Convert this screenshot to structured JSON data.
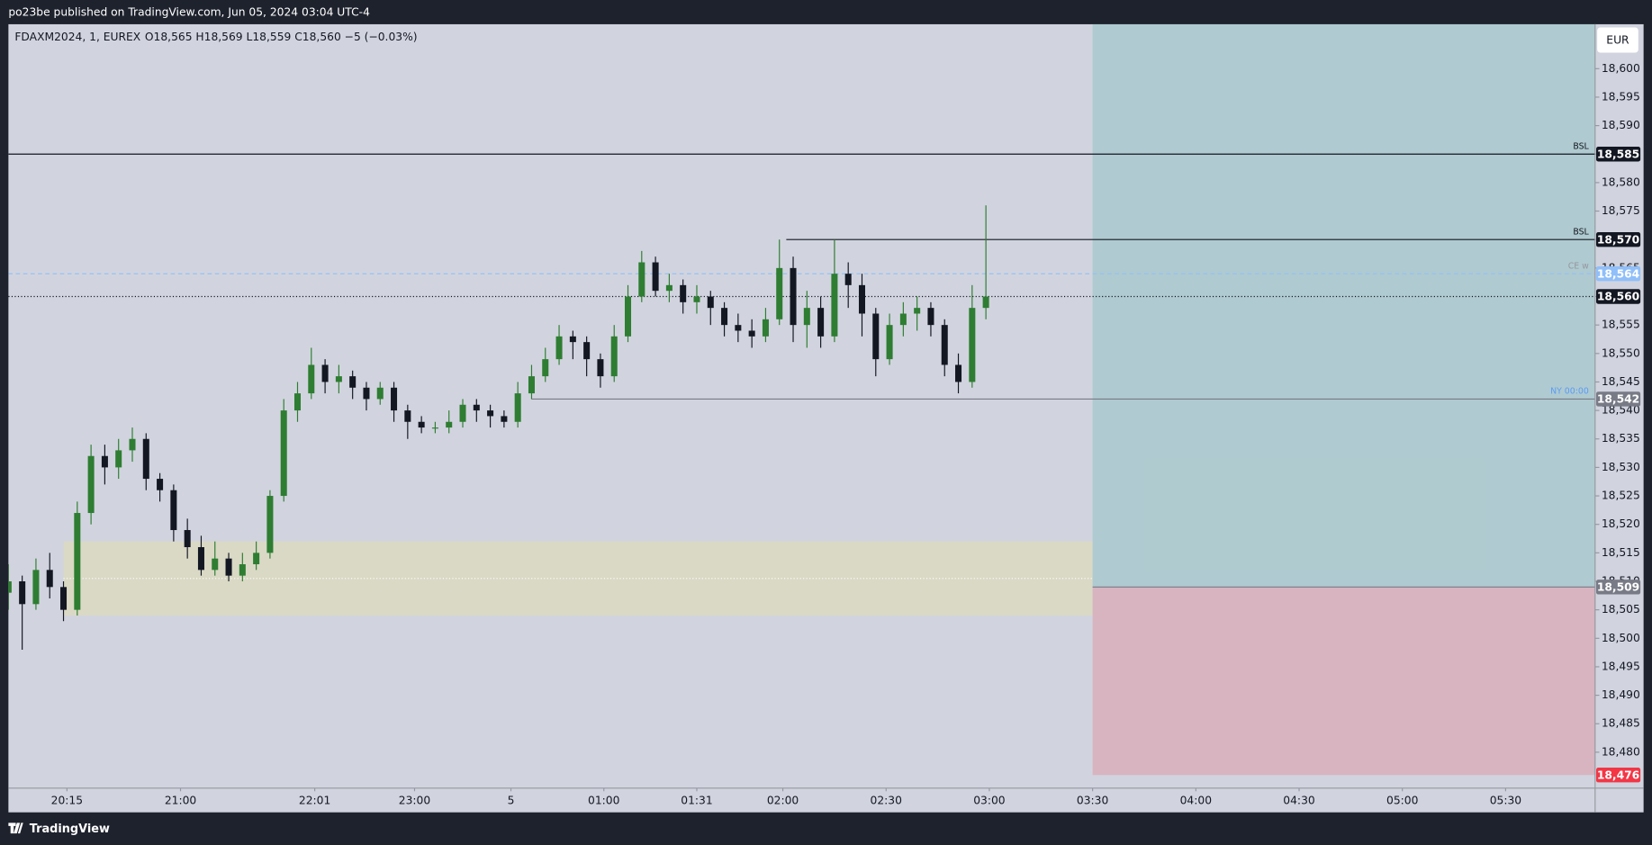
{
  "header": {
    "title": "po23be published on TradingView.com, Jun 05, 2024 03:04 UTC-4"
  },
  "footer": {
    "brand": "TradingView"
  },
  "chart_data": {
    "type": "candlestick",
    "symbol": "FDAXM2024, 1, EUREX",
    "ohlc_legend": "O18,565  H18,569  L18,559  C18,560  −5 (−0.03%)",
    "currency": "EUR",
    "up_color": "#2e7d32",
    "down_color": "#131722",
    "x": [
      0,
      4,
      8,
      12,
      16,
      20,
      24,
      28,
      32,
      36,
      40,
      44,
      48,
      52,
      56,
      60,
      64,
      68,
      72,
      76,
      80,
      84,
      88,
      92,
      96,
      100,
      104,
      108,
      112,
      116,
      120,
      124,
      128,
      132,
      136,
      140,
      144,
      148,
      152,
      156,
      160,
      164,
      168,
      172,
      176,
      180,
      184,
      188,
      192,
      196,
      200,
      204,
      208,
      212,
      216,
      220,
      224,
      228,
      232,
      236,
      240,
      244,
      248,
      252,
      256,
      260,
      264,
      268,
      272,
      276,
      280,
      284
    ],
    "open": [
      18508,
      18510,
      18506,
      18512,
      18509,
      18505,
      18522,
      18532,
      18530,
      18533,
      18535,
      18528,
      18526,
      18519,
      18516,
      18512,
      18514,
      18511,
      18513,
      18515,
      18525,
      18540,
      18543,
      18548,
      18545,
      18546,
      18544,
      18542,
      18544,
      18540,
      18538,
      18537,
      18537,
      18538,
      18541,
      18540,
      18539,
      18538,
      18543,
      18546,
      18549,
      18553,
      18552,
      18549,
      18546,
      18553,
      18560,
      18566,
      18561,
      18562,
      18559,
      18560,
      18558,
      18555,
      18554,
      18553,
      18556,
      18565,
      18555,
      18558,
      18553,
      18564,
      18562,
      18557,
      18549,
      18555,
      18557,
      18558,
      18555,
      18548,
      18545,
      18558
    ],
    "high": [
      18513,
      18511,
      18514,
      18515,
      18510,
      18524,
      18534,
      18534,
      18535,
      18537,
      18536,
      18529,
      18527,
      18521,
      18518,
      18517,
      18515,
      18515,
      18517,
      18526,
      18542,
      18545,
      18551,
      18549,
      18548,
      18547,
      18545,
      18545,
      18545,
      18541,
      18539,
      18538,
      18540,
      18542,
      18542,
      18541,
      18540,
      18545,
      18548,
      18551,
      18555,
      18554,
      18553,
      18550,
      18555,
      18562,
      18568,
      18567,
      18564,
      18563,
      18562,
      18561,
      18559,
      18557,
      18556,
      18558,
      18570,
      18567,
      18561,
      18560,
      18570,
      18566,
      18564,
      18558,
      18557,
      18559,
      18560,
      18559,
      18556,
      18550,
      18562,
      18576
    ],
    "low": [
      18505,
      18498,
      18505,
      18507,
      18503,
      18504,
      18520,
      18527,
      18528,
      18531,
      18526,
      18524,
      18517,
      18514,
      18511,
      18511,
      18510,
      18510,
      18512,
      18514,
      18524,
      18538,
      18542,
      18543,
      18543,
      18542,
      18540,
      18541,
      18538,
      18535,
      18536,
      18536,
      18536,
      18537,
      18538,
      18537,
      18537,
      18537,
      18542,
      18545,
      18548,
      18549,
      18546,
      18544,
      18545,
      18552,
      18559,
      18560,
      18559,
      18557,
      18557,
      18555,
      18553,
      18552,
      18551,
      18552,
      18555,
      18552,
      18551,
      18551,
      18552,
      18558,
      18553,
      18546,
      18548,
      18553,
      18554,
      18553,
      18546,
      18543,
      18544,
      18556
    ],
    "close": [
      18510,
      18506,
      18512,
      18509,
      18505,
      18522,
      18532,
      18530,
      18533,
      18535,
      18528,
      18526,
      18519,
      18516,
      18512,
      18514,
      18511,
      18513,
      18515,
      18525,
      18540,
      18543,
      18548,
      18545,
      18546,
      18544,
      18542,
      18544,
      18540,
      18538,
      18537,
      18537,
      18538,
      18541,
      18540,
      18539,
      18538,
      18543,
      18546,
      18549,
      18553,
      18552,
      18549,
      18546,
      18553,
      18560,
      18566,
      18561,
      18562,
      18559,
      18560,
      18558,
      18555,
      18554,
      18553,
      18556,
      18565,
      18555,
      18558,
      18553,
      18564,
      18562,
      18557,
      18549,
      18555,
      18557,
      18558,
      18555,
      18548,
      18545,
      18558,
      18560
    ],
    "xlim": [
      0,
      461
    ],
    "xticks": [
      {
        "value": 17,
        "label": "20:15"
      },
      {
        "value": 50,
        "label": "21:00"
      },
      {
        "value": 89,
        "label": "22:01"
      },
      {
        "value": 118,
        "label": "23:00"
      },
      {
        "value": 146,
        "label": "5"
      },
      {
        "value": 173,
        "label": "01:00"
      },
      {
        "value": 200,
        "label": "01:31"
      },
      {
        "value": 225,
        "label": "02:00"
      },
      {
        "value": 255,
        "label": "02:30"
      },
      {
        "value": 285,
        "label": "03:00"
      },
      {
        "value": 315,
        "label": "03:30"
      },
      {
        "value": 345,
        "label": "04:00"
      },
      {
        "value": 375,
        "label": "04:30"
      },
      {
        "value": 405,
        "label": "05:00"
      },
      {
        "value": 435,
        "label": "05:30"
      }
    ],
    "ylim": [
      18473.7,
      18607.8
    ],
    "yticks": [
      {
        "value": 18480,
        "label": "18,480"
      },
      {
        "value": 18485,
        "label": "18,485"
      },
      {
        "value": 18490,
        "label": "18,490"
      },
      {
        "value": 18495,
        "label": "18,495"
      },
      {
        "value": 18500,
        "label": "18,500"
      },
      {
        "value": 18505,
        "label": "18,505"
      },
      {
        "value": 18510,
        "label": "18,510"
      },
      {
        "value": 18515,
        "label": "18,515"
      },
      {
        "value": 18520,
        "label": "18,520"
      },
      {
        "value": 18525,
        "label": "18,525"
      },
      {
        "value": 18530,
        "label": "18,530"
      },
      {
        "value": 18535,
        "label": "18,535"
      },
      {
        "value": 18540,
        "label": "18,540"
      },
      {
        "value": 18545,
        "label": "18,545"
      },
      {
        "value": 18550,
        "label": "18,550"
      },
      {
        "value": 18555,
        "label": "18,555"
      },
      {
        "value": 18560,
        "label": "18,560"
      },
      {
        "value": 18565,
        "label": "18,565"
      },
      {
        "value": 18570,
        "label": "18,570"
      },
      {
        "value": 18575,
        "label": "18,575"
      },
      {
        "value": 18580,
        "label": "18,580"
      },
      {
        "value": 18585,
        "label": "18,585"
      },
      {
        "value": 18590,
        "label": "18,590"
      },
      {
        "value": 18595,
        "label": "18,595"
      },
      {
        "value": 18600,
        "label": "18,600"
      }
    ],
    "levels": [
      {
        "name": "BSL",
        "value": 18585,
        "label": "18,585",
        "start": 0,
        "color": "#131722",
        "style": "solid",
        "tag_color": "#131722",
        "text_color": "#131722"
      },
      {
        "name": "BSL",
        "value": 18570,
        "label": "18,570",
        "start": 226,
        "color": "#131722",
        "style": "solid",
        "tag_color": "#131722",
        "text_color": "#131722"
      },
      {
        "name": "CE w",
        "value": 18564,
        "label": "18,564",
        "start": 0,
        "color": "#90bff9",
        "style": "dashed",
        "tag_color": "#90bff9",
        "text_color": "#9598a1"
      },
      {
        "value": 18560,
        "label": "18,560",
        "start": 0,
        "color": "#131722",
        "style": "dotted",
        "tag_color": "#131722",
        "text_color": "#131722"
      },
      {
        "name": "NY 00:00",
        "value": 18542,
        "label": "18,542",
        "start": 152,
        "color": "#787b86",
        "style": "solid",
        "tag_color": "#787b86",
        "text_color": "#5b9cf6"
      }
    ],
    "zones": [
      {
        "x": [
          16,
          315
        ],
        "y": [
          18504,
          18517
        ],
        "color": "#f0e68c"
      }
    ],
    "position": {
      "x": [
        315,
        461
      ],
      "target": 18610,
      "entry": 18509,
      "entry_label": "18,509",
      "entry_color": "#787b86",
      "stop": 18476,
      "stop_label": "18,476",
      "stop_color": "#f23645",
      "target_fill": "#26a69a",
      "stop_fill": "#f23645"
    }
  }
}
